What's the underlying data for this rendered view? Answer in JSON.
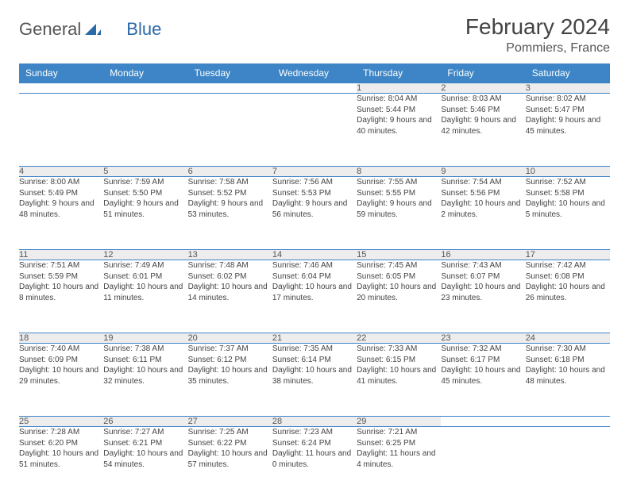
{
  "brand": {
    "part1": "General",
    "part2": "Blue"
  },
  "title": "February 2024",
  "location": "Pommiers, France",
  "colors": {
    "header_bg": "#3d85c6",
    "header_text": "#ffffff",
    "daynum_bg": "#ededed",
    "border": "#3d85c6",
    "text": "#444444",
    "brand_gray": "#555555",
    "brand_blue": "#2b6aa8"
  },
  "weekdays": [
    "Sunday",
    "Monday",
    "Tuesday",
    "Wednesday",
    "Thursday",
    "Friday",
    "Saturday"
  ],
  "weeks": [
    [
      null,
      null,
      null,
      null,
      {
        "n": "1",
        "sr": "Sunrise: 8:04 AM",
        "ss": "Sunset: 5:44 PM",
        "dl": "Daylight: 9 hours and 40 minutes."
      },
      {
        "n": "2",
        "sr": "Sunrise: 8:03 AM",
        "ss": "Sunset: 5:46 PM",
        "dl": "Daylight: 9 hours and 42 minutes."
      },
      {
        "n": "3",
        "sr": "Sunrise: 8:02 AM",
        "ss": "Sunset: 5:47 PM",
        "dl": "Daylight: 9 hours and 45 minutes."
      }
    ],
    [
      {
        "n": "4",
        "sr": "Sunrise: 8:00 AM",
        "ss": "Sunset: 5:49 PM",
        "dl": "Daylight: 9 hours and 48 minutes."
      },
      {
        "n": "5",
        "sr": "Sunrise: 7:59 AM",
        "ss": "Sunset: 5:50 PM",
        "dl": "Daylight: 9 hours and 51 minutes."
      },
      {
        "n": "6",
        "sr": "Sunrise: 7:58 AM",
        "ss": "Sunset: 5:52 PM",
        "dl": "Daylight: 9 hours and 53 minutes."
      },
      {
        "n": "7",
        "sr": "Sunrise: 7:56 AM",
        "ss": "Sunset: 5:53 PM",
        "dl": "Daylight: 9 hours and 56 minutes."
      },
      {
        "n": "8",
        "sr": "Sunrise: 7:55 AM",
        "ss": "Sunset: 5:55 PM",
        "dl": "Daylight: 9 hours and 59 minutes."
      },
      {
        "n": "9",
        "sr": "Sunrise: 7:54 AM",
        "ss": "Sunset: 5:56 PM",
        "dl": "Daylight: 10 hours and 2 minutes."
      },
      {
        "n": "10",
        "sr": "Sunrise: 7:52 AM",
        "ss": "Sunset: 5:58 PM",
        "dl": "Daylight: 10 hours and 5 minutes."
      }
    ],
    [
      {
        "n": "11",
        "sr": "Sunrise: 7:51 AM",
        "ss": "Sunset: 5:59 PM",
        "dl": "Daylight: 10 hours and 8 minutes."
      },
      {
        "n": "12",
        "sr": "Sunrise: 7:49 AM",
        "ss": "Sunset: 6:01 PM",
        "dl": "Daylight: 10 hours and 11 minutes."
      },
      {
        "n": "13",
        "sr": "Sunrise: 7:48 AM",
        "ss": "Sunset: 6:02 PM",
        "dl": "Daylight: 10 hours and 14 minutes."
      },
      {
        "n": "14",
        "sr": "Sunrise: 7:46 AM",
        "ss": "Sunset: 6:04 PM",
        "dl": "Daylight: 10 hours and 17 minutes."
      },
      {
        "n": "15",
        "sr": "Sunrise: 7:45 AM",
        "ss": "Sunset: 6:05 PM",
        "dl": "Daylight: 10 hours and 20 minutes."
      },
      {
        "n": "16",
        "sr": "Sunrise: 7:43 AM",
        "ss": "Sunset: 6:07 PM",
        "dl": "Daylight: 10 hours and 23 minutes."
      },
      {
        "n": "17",
        "sr": "Sunrise: 7:42 AM",
        "ss": "Sunset: 6:08 PM",
        "dl": "Daylight: 10 hours and 26 minutes."
      }
    ],
    [
      {
        "n": "18",
        "sr": "Sunrise: 7:40 AM",
        "ss": "Sunset: 6:09 PM",
        "dl": "Daylight: 10 hours and 29 minutes."
      },
      {
        "n": "19",
        "sr": "Sunrise: 7:38 AM",
        "ss": "Sunset: 6:11 PM",
        "dl": "Daylight: 10 hours and 32 minutes."
      },
      {
        "n": "20",
        "sr": "Sunrise: 7:37 AM",
        "ss": "Sunset: 6:12 PM",
        "dl": "Daylight: 10 hours and 35 minutes."
      },
      {
        "n": "21",
        "sr": "Sunrise: 7:35 AM",
        "ss": "Sunset: 6:14 PM",
        "dl": "Daylight: 10 hours and 38 minutes."
      },
      {
        "n": "22",
        "sr": "Sunrise: 7:33 AM",
        "ss": "Sunset: 6:15 PM",
        "dl": "Daylight: 10 hours and 41 minutes."
      },
      {
        "n": "23",
        "sr": "Sunrise: 7:32 AM",
        "ss": "Sunset: 6:17 PM",
        "dl": "Daylight: 10 hours and 45 minutes."
      },
      {
        "n": "24",
        "sr": "Sunrise: 7:30 AM",
        "ss": "Sunset: 6:18 PM",
        "dl": "Daylight: 10 hours and 48 minutes."
      }
    ],
    [
      {
        "n": "25",
        "sr": "Sunrise: 7:28 AM",
        "ss": "Sunset: 6:20 PM",
        "dl": "Daylight: 10 hours and 51 minutes."
      },
      {
        "n": "26",
        "sr": "Sunrise: 7:27 AM",
        "ss": "Sunset: 6:21 PM",
        "dl": "Daylight: 10 hours and 54 minutes."
      },
      {
        "n": "27",
        "sr": "Sunrise: 7:25 AM",
        "ss": "Sunset: 6:22 PM",
        "dl": "Daylight: 10 hours and 57 minutes."
      },
      {
        "n": "28",
        "sr": "Sunrise: 7:23 AM",
        "ss": "Sunset: 6:24 PM",
        "dl": "Daylight: 11 hours and 0 minutes."
      },
      {
        "n": "29",
        "sr": "Sunrise: 7:21 AM",
        "ss": "Sunset: 6:25 PM",
        "dl": "Daylight: 11 hours and 4 minutes."
      },
      null,
      null
    ]
  ]
}
